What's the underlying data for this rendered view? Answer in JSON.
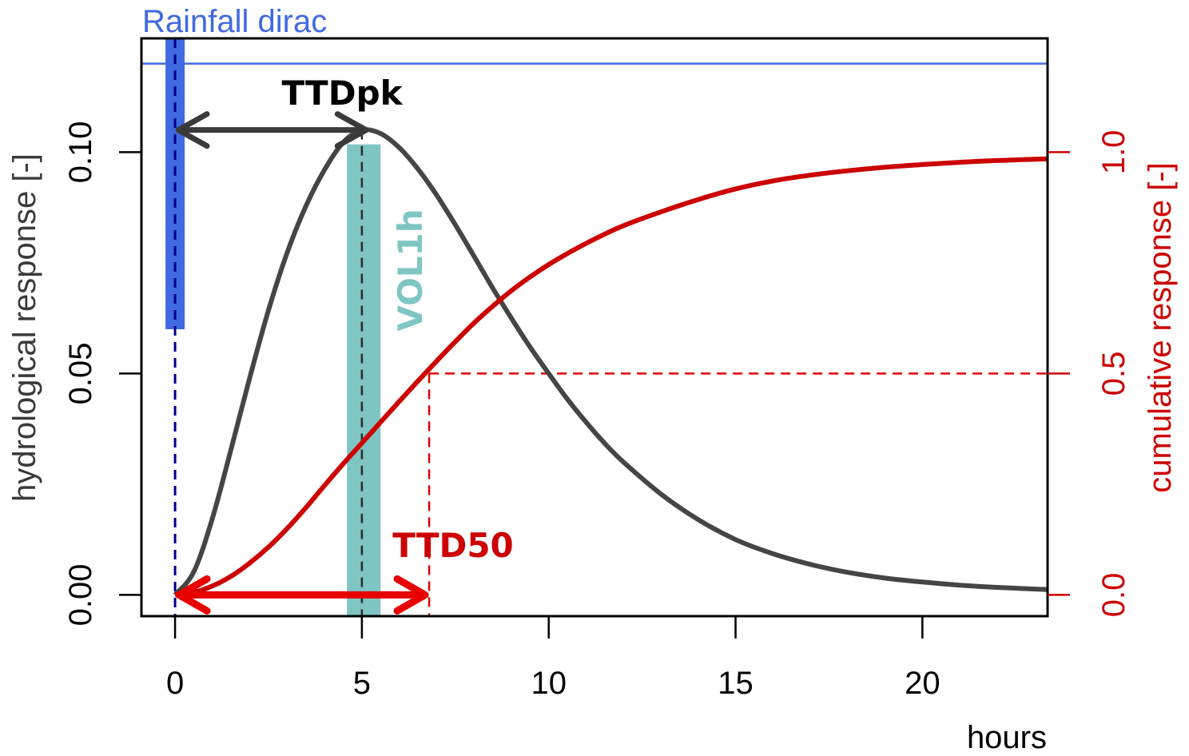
{
  "chart_data": {
    "type": "line",
    "xlabel": "hours",
    "ylabel_left": "hydrological response [-]",
    "ylabel_right": "cumulative response [-]",
    "xlim": [
      -0.9,
      23.35
    ],
    "ylim_left": [
      -0.0048,
      0.1257
    ],
    "ylim_right": [
      -0.048,
      1.257
    ],
    "x_ticks": [
      0,
      5,
      10,
      15,
      20
    ],
    "x_tick_labels": [
      "0",
      "5",
      "10",
      "15",
      "20"
    ],
    "y_left_ticks": [
      0.0,
      0.05,
      0.1
    ],
    "y_left_tick_labels": [
      "0.00",
      "0.05",
      "0.10"
    ],
    "y_right_ticks": [
      0.0,
      0.5,
      1.0
    ],
    "y_right_tick_labels": [
      "0.0",
      "0.5",
      "1.0"
    ],
    "grid": false,
    "rainfall": {
      "label": "Rainfall dirac",
      "time": 0,
      "bar_bottom": 0.06,
      "line_level": 0.12,
      "color": "#4169e1"
    },
    "series": [
      {
        "name": "hydrological response",
        "axis": "left",
        "color": "#454545",
        "x": [
          0,
          0.5,
          1,
          1.5,
          2,
          2.5,
          3,
          3.5,
          4,
          4.5,
          5,
          5.5,
          6,
          6.5,
          7,
          7.5,
          8,
          8.5,
          9,
          9.5,
          10,
          10.5,
          11,
          11.5,
          12,
          13,
          14,
          15,
          16,
          17,
          18,
          19,
          20,
          21,
          22,
          23.35
        ],
        "values": [
          0.0,
          0.0052,
          0.0173,
          0.0329,
          0.0491,
          0.0643,
          0.0773,
          0.0878,
          0.096,
          0.1022,
          0.105,
          0.1042,
          0.101,
          0.0962,
          0.0903,
          0.0836,
          0.0765,
          0.0693,
          0.0625,
          0.056,
          0.05,
          0.0442,
          0.039,
          0.0342,
          0.03,
          0.0228,
          0.017,
          0.0125,
          0.0093,
          0.0069,
          0.0051,
          0.0038,
          0.0029,
          0.0022,
          0.0017,
          0.0012
        ]
      },
      {
        "name": "cumulative response",
        "axis": "right",
        "color": "#cc0000",
        "x": [
          0,
          0.5,
          1,
          1.5,
          2,
          2.5,
          3,
          3.5,
          4,
          4.5,
          5,
          5.5,
          6,
          6.5,
          7,
          7.5,
          8,
          8.5,
          9,
          9.5,
          10,
          10.5,
          11,
          11.5,
          12,
          13,
          14,
          15,
          16,
          17,
          18,
          19,
          20,
          21,
          22,
          23.35
        ],
        "values": [
          0.0,
          0.006,
          0.02,
          0.042,
          0.072,
          0.108,
          0.15,
          0.197,
          0.247,
          0.296,
          0.343,
          0.39,
          0.437,
          0.483,
          0.528,
          0.572,
          0.614,
          0.652,
          0.687,
          0.718,
          0.746,
          0.771,
          0.794,
          0.815,
          0.834,
          0.865,
          0.893,
          0.917,
          0.935,
          0.948,
          0.958,
          0.966,
          0.972,
          0.977,
          0.981,
          0.985
        ]
      }
    ],
    "annotations": {
      "ttdpk": {
        "label": "TTDpk",
        "from": 0,
        "to": 5.2,
        "level": 0.105,
        "color": "#3a3a3a"
      },
      "vol1h": {
        "label": "VOL1h",
        "from": 4.6,
        "to": 5.5,
        "color": "#7fc5c4"
      },
      "ttd50": {
        "label": "TTD50",
        "from": 0,
        "to": 6.8,
        "level": 0.0,
        "threshold": 0.5,
        "color": "#e80000"
      },
      "peak_time": 5.0
    }
  }
}
